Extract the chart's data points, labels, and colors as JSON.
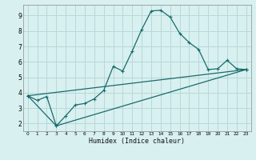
{
  "xlabel": "Humidex (Indice chaleur)",
  "bg_color": "#d8f0f0",
  "grid_color": "#b8d8d8",
  "line_color": "#1a6b6b",
  "xlim": [
    -0.5,
    23.5
  ],
  "ylim": [
    1.5,
    9.7
  ],
  "xticks": [
    0,
    1,
    2,
    3,
    4,
    5,
    6,
    7,
    8,
    9,
    10,
    11,
    12,
    13,
    14,
    15,
    16,
    17,
    18,
    19,
    20,
    21,
    22,
    23
  ],
  "yticks": [
    2,
    3,
    4,
    5,
    6,
    7,
    8,
    9
  ],
  "lines": [
    {
      "x": [
        0,
        1,
        2,
        3,
        4,
        5,
        6,
        7,
        8,
        9,
        10,
        11,
        12,
        13,
        14,
        15,
        16,
        17,
        18,
        19,
        20,
        21,
        22,
        23
      ],
      "y": [
        3.8,
        3.5,
        3.75,
        1.85,
        2.5,
        3.2,
        3.3,
        3.6,
        4.15,
        5.7,
        5.4,
        6.7,
        8.1,
        9.3,
        9.35,
        8.9,
        7.85,
        7.25,
        6.8,
        5.5,
        5.55,
        6.1,
        5.55,
        5.5
      ]
    },
    {
      "x": [
        0,
        23
      ],
      "y": [
        3.8,
        5.5
      ]
    },
    {
      "x": [
        0,
        3,
        23
      ],
      "y": [
        3.8,
        1.85,
        5.5
      ]
    }
  ]
}
